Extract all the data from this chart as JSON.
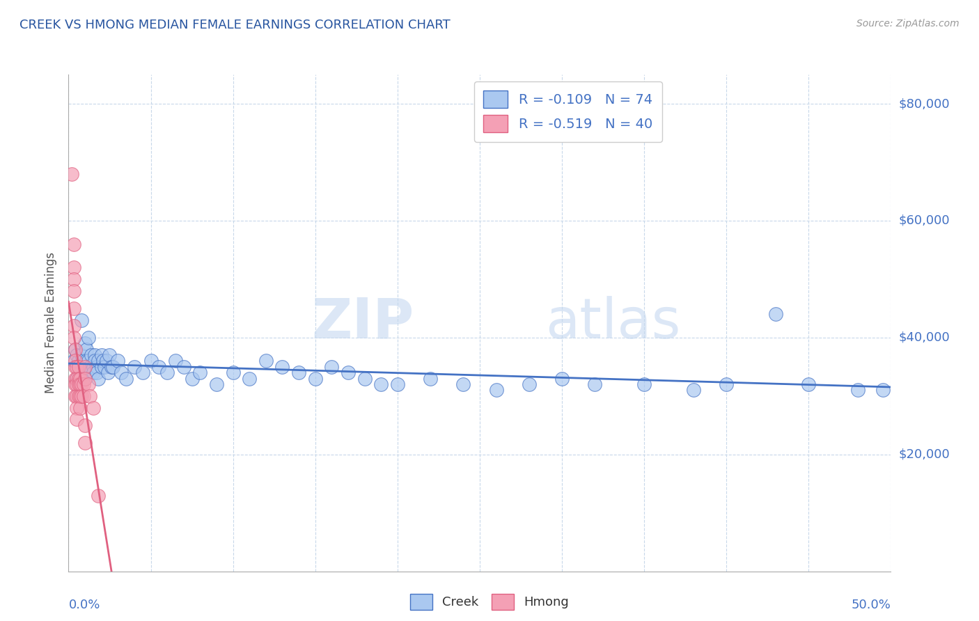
{
  "title": "CREEK VS HMONG MEDIAN FEMALE EARNINGS CORRELATION CHART",
  "source": "Source: ZipAtlas.com",
  "ylabel": "Median Female Earnings",
  "y_tick_labels": [
    "$20,000",
    "$40,000",
    "$60,000",
    "$80,000"
  ],
  "y_tick_values": [
    20000,
    40000,
    60000,
    80000
  ],
  "xmin": 0.0,
  "xmax": 50.0,
  "ymin": 0,
  "ymax": 85000,
  "creek_color": "#aac8f0",
  "hmong_color": "#f4a0b5",
  "creek_line_color": "#4472c4",
  "hmong_line_color": "#e06080",
  "creek_R": -0.109,
  "creek_N": 74,
  "hmong_R": -0.519,
  "hmong_N": 40,
  "legend_creek_label": "Creek",
  "legend_hmong_label": "Hmong",
  "title_color": "#2855a0",
  "axis_label_color": "#4472c4",
  "background_color": "#ffffff",
  "watermark_zip": "ZIP",
  "watermark_atlas": "atlas",
  "creek_points": [
    [
      0.3,
      36000
    ],
    [
      0.4,
      38000
    ],
    [
      0.5,
      37000
    ],
    [
      0.5,
      33000
    ],
    [
      0.6,
      36000
    ],
    [
      0.7,
      34000
    ],
    [
      0.8,
      43000
    ],
    [
      0.8,
      37000
    ],
    [
      0.9,
      36000
    ],
    [
      1.0,
      39000
    ],
    [
      1.0,
      35000
    ],
    [
      1.0,
      33000
    ],
    [
      1.1,
      38000
    ],
    [
      1.1,
      36000
    ],
    [
      1.1,
      34000
    ],
    [
      1.2,
      40000
    ],
    [
      1.2,
      36000
    ],
    [
      1.3,
      35000
    ],
    [
      1.3,
      34000
    ],
    [
      1.4,
      37000
    ],
    [
      1.5,
      35000
    ],
    [
      1.5,
      34000
    ],
    [
      1.6,
      37000
    ],
    [
      1.6,
      36000
    ],
    [
      1.7,
      35000
    ],
    [
      1.7,
      34000
    ],
    [
      1.8,
      36000
    ],
    [
      1.8,
      33000
    ],
    [
      2.0,
      37000
    ],
    [
      2.0,
      35000
    ],
    [
      2.1,
      36000
    ],
    [
      2.2,
      35000
    ],
    [
      2.3,
      36000
    ],
    [
      2.4,
      34000
    ],
    [
      2.5,
      37000
    ],
    [
      2.6,
      35000
    ],
    [
      2.7,
      35000
    ],
    [
      3.0,
      36000
    ],
    [
      3.2,
      34000
    ],
    [
      3.5,
      33000
    ],
    [
      4.0,
      35000
    ],
    [
      4.5,
      34000
    ],
    [
      5.0,
      36000
    ],
    [
      5.5,
      35000
    ],
    [
      6.0,
      34000
    ],
    [
      6.5,
      36000
    ],
    [
      7.0,
      35000
    ],
    [
      7.5,
      33000
    ],
    [
      8.0,
      34000
    ],
    [
      9.0,
      32000
    ],
    [
      10.0,
      34000
    ],
    [
      11.0,
      33000
    ],
    [
      12.0,
      36000
    ],
    [
      13.0,
      35000
    ],
    [
      14.0,
      34000
    ],
    [
      15.0,
      33000
    ],
    [
      16.0,
      35000
    ],
    [
      17.0,
      34000
    ],
    [
      18.0,
      33000
    ],
    [
      19.0,
      32000
    ],
    [
      20.0,
      32000
    ],
    [
      22.0,
      33000
    ],
    [
      24.0,
      32000
    ],
    [
      26.0,
      31000
    ],
    [
      28.0,
      32000
    ],
    [
      30.0,
      33000
    ],
    [
      32.0,
      32000
    ],
    [
      35.0,
      32000
    ],
    [
      38.0,
      31000
    ],
    [
      40.0,
      32000
    ],
    [
      43.0,
      44000
    ],
    [
      45.0,
      32000
    ],
    [
      48.0,
      31000
    ],
    [
      49.5,
      31000
    ]
  ],
  "hmong_points": [
    [
      0.2,
      68000
    ],
    [
      0.3,
      56000
    ],
    [
      0.3,
      52000
    ],
    [
      0.3,
      50000
    ],
    [
      0.3,
      48000
    ],
    [
      0.3,
      45000
    ],
    [
      0.3,
      42000
    ],
    [
      0.3,
      40000
    ],
    [
      0.4,
      38000
    ],
    [
      0.4,
      36000
    ],
    [
      0.4,
      35000
    ],
    [
      0.4,
      33000
    ],
    [
      0.4,
      32000
    ],
    [
      0.4,
      30000
    ],
    [
      0.5,
      35000
    ],
    [
      0.5,
      33000
    ],
    [
      0.5,
      32000
    ],
    [
      0.5,
      30000
    ],
    [
      0.5,
      28000
    ],
    [
      0.5,
      26000
    ],
    [
      0.6,
      35000
    ],
    [
      0.6,
      33000
    ],
    [
      0.6,
      32000
    ],
    [
      0.6,
      30000
    ],
    [
      0.7,
      33000
    ],
    [
      0.7,
      32000
    ],
    [
      0.7,
      30000
    ],
    [
      0.7,
      28000
    ],
    [
      0.8,
      32000
    ],
    [
      0.8,
      30000
    ],
    [
      0.9,
      32000
    ],
    [
      0.9,
      30000
    ],
    [
      1.0,
      35000
    ],
    [
      1.0,
      33000
    ],
    [
      1.0,
      25000
    ],
    [
      1.0,
      22000
    ],
    [
      1.2,
      32000
    ],
    [
      1.3,
      30000
    ],
    [
      1.5,
      28000
    ],
    [
      1.8,
      13000
    ]
  ]
}
